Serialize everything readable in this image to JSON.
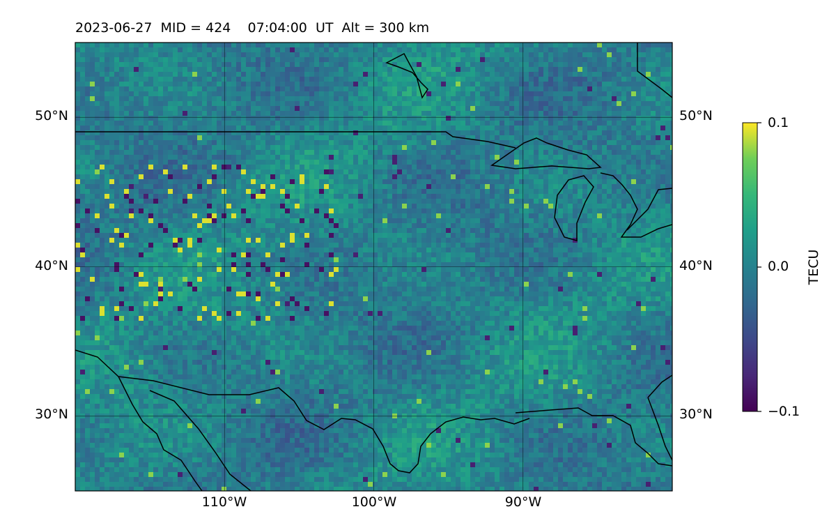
{
  "title": "2023-06-27  MID = 424    07:04:00  UT  Alt = 300 km",
  "map": {
    "lon_range": [
      -120,
      -80
    ],
    "lat_range": [
      25,
      55
    ],
    "grid": true,
    "lat_ticks": [
      {
        "value": 50,
        "label": "50°N"
      },
      {
        "value": 40,
        "label": "40°N"
      },
      {
        "value": 30,
        "label": "30°N"
      }
    ],
    "lon_ticks": [
      {
        "value": -110,
        "label": "110°W"
      },
      {
        "value": -100,
        "label": "100°W"
      },
      {
        "value": -90,
        "label": "90°W"
      }
    ]
  },
  "colorbar": {
    "label": "TECU",
    "range": [
      -0.1,
      0.1
    ],
    "colormap": "viridis",
    "ticks": [
      {
        "value": 0.1,
        "label": "0.1"
      },
      {
        "value": 0.0,
        "label": "0.0"
      },
      {
        "value": -0.1,
        "label": "−0.1"
      }
    ]
  },
  "colors": {
    "viridis_low": "#440154",
    "viridis_mid": "#21918c",
    "viridis_high": "#fde725",
    "coastline": "#000000"
  }
}
